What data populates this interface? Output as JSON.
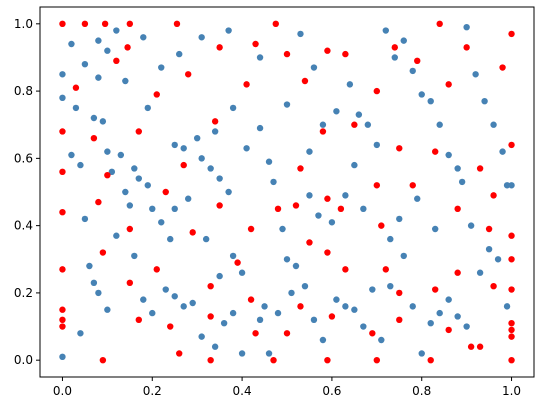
{
  "chart_data": {
    "type": "scatter",
    "xlim": [
      -0.05,
      1.05
    ],
    "ylim": [
      -0.05,
      1.05
    ],
    "xticks": [
      {
        "value": 0,
        "label": "0.0"
      },
      0.2,
      0.4,
      0.6,
      0.8,
      {
        "value": 1,
        "label": "1.0"
      }
    ],
    "yticks": [
      {
        "value": 0,
        "label": "0.0"
      },
      0.2,
      0.4,
      0.6,
      0.8,
      {
        "value": 1,
        "label": "1.0"
      }
    ],
    "series": [
      {
        "color": "#4682b4",
        "x": [
          0.0,
          0.0,
          0.0,
          0.03,
          0.02,
          0.04,
          0.05,
          0.07,
          0.08,
          0.09,
          0.1,
          0.11,
          0.13,
          0.14,
          0.16,
          0.17,
          0.19,
          0.2,
          0.22,
          0.24,
          0.25,
          0.27,
          0.3,
          0.31,
          0.33,
          0.35,
          0.37,
          0.38,
          0.4,
          0.41,
          0.44,
          0.46,
          0.47,
          0.49,
          0.5,
          0.52,
          0.55,
          0.57,
          0.6,
          0.61,
          0.64,
          0.66,
          0.68,
          0.7,
          0.72,
          0.74,
          0.76,
          0.78,
          0.8,
          0.82,
          0.84,
          0.86,
          0.88,
          0.9,
          0.92,
          0.94,
          0.96,
          0.98,
          1.0,
          0.99,
          0.02,
          0.05,
          0.08,
          0.12,
          0.18,
          0.22,
          0.26,
          0.31,
          0.37,
          0.44,
          0.53,
          0.56,
          0.5,
          0.38,
          0.34,
          0.19,
          0.14,
          0.06,
          0.07,
          0.08,
          0.04,
          0.1,
          0.12,
          0.16,
          0.18,
          0.2,
          0.23,
          0.25,
          0.27,
          0.29,
          0.31,
          0.34,
          0.36,
          0.38,
          0.4,
          0.44,
          0.45,
          0.46,
          0.48,
          0.51,
          0.54,
          0.56,
          0.58,
          0.61,
          0.63,
          0.65,
          0.67,
          0.69,
          0.71,
          0.73,
          0.76,
          0.78,
          0.8,
          0.82,
          0.84,
          0.86,
          0.88,
          0.9,
          0.93,
          0.95,
          0.97,
          0.99,
          0.65,
          0.63,
          0.67,
          0.73,
          0.75,
          0.79,
          0.83,
          0.89,
          0.91,
          0.55,
          0.58,
          0.25,
          0.28,
          0.32,
          0.35,
          0.1,
          0.15
        ],
        "values": [
          0.85,
          0.78,
          0.01,
          0.75,
          0.61,
          0.58,
          0.42,
          0.72,
          0.84,
          0.71,
          0.92,
          0.56,
          0.61,
          0.5,
          0.57,
          0.54,
          0.52,
          0.45,
          0.41,
          0.36,
          0.64,
          0.63,
          0.66,
          0.6,
          0.57,
          0.54,
          0.5,
          0.31,
          0.26,
          0.63,
          0.69,
          0.59,
          0.53,
          0.39,
          0.3,
          0.28,
          0.49,
          0.43,
          0.41,
          0.74,
          0.82,
          0.73,
          0.7,
          0.64,
          0.98,
          0.9,
          0.95,
          0.86,
          0.79,
          0.77,
          0.7,
          0.61,
          0.57,
          0.99,
          0.85,
          0.77,
          0.7,
          0.62,
          0.52,
          0.52,
          0.94,
          0.88,
          0.95,
          0.98,
          0.96,
          0.87,
          0.91,
          0.96,
          0.98,
          0.9,
          0.97,
          0.87,
          0.76,
          0.75,
          0.68,
          0.75,
          0.83,
          0.28,
          0.23,
          0.2,
          0.08,
          0.15,
          0.37,
          0.31,
          0.18,
          0.14,
          0.21,
          0.19,
          0.16,
          0.17,
          0.07,
          0.04,
          0.11,
          0.14,
          0.02,
          0.12,
          0.16,
          0.02,
          0.14,
          0.2,
          0.22,
          0.12,
          0.06,
          0.18,
          0.16,
          0.15,
          0.1,
          0.21,
          0.06,
          0.22,
          0.31,
          0.16,
          0.02,
          0.11,
          0.14,
          0.18,
          0.13,
          0.1,
          0.26,
          0.33,
          0.3,
          0.16,
          0.58,
          0.49,
          0.45,
          0.36,
          0.42,
          0.48,
          0.39,
          0.53,
          0.4,
          0.62,
          0.7,
          0.45,
          0.48,
          0.36,
          0.25,
          0.62,
          0.46
        ]
      },
      {
        "color": "#ff0000",
        "x": [
          0,
          0.05,
          0.095,
          0.15,
          0.255,
          0.475,
          0.84,
          1.0,
          0.145,
          0.12,
          0.03,
          0.21,
          0.35,
          0.43,
          0.5,
          0.59,
          0.63,
          0.74,
          0.79,
          0.9,
          0.98,
          0.28,
          0.41,
          0.54,
          0.7,
          0.86,
          0.17,
          0.34,
          0.58,
          0.65,
          0.75,
          0.83,
          0.93,
          1.0,
          0.0,
          0.07,
          0.0,
          0.1,
          0.27,
          0.53,
          0.59,
          0.7,
          0.78,
          0.96,
          0.0,
          0.08,
          0.23,
          0.35,
          0.48,
          0.52,
          0.62,
          0.88,
          0.15,
          0.29,
          0.42,
          0.55,
          0.71,
          0.95,
          1.0,
          0.09,
          0.21,
          0.39,
          0.59,
          0.63,
          0.72,
          0.88,
          1.0,
          0.0,
          0.15,
          0.33,
          0.42,
          0.53,
          0.75,
          0.83,
          0.96,
          1.0,
          0.0,
          0.0,
          0.0,
          0.17,
          0.24,
          0.33,
          0.43,
          0.5,
          0.6,
          0.69,
          0.75,
          0.86,
          0.93,
          1.0,
          1.0,
          1.0,
          0.09,
          0.26,
          0.33,
          0.47,
          0.59,
          0.7,
          0.82,
          0.91,
          1.0
        ],
        "values": [
          1.0,
          1.0,
          1.0,
          1.0,
          1.0,
          1.0,
          1.0,
          0.97,
          0.93,
          0.89,
          0.81,
          0.79,
          0.93,
          0.94,
          0.91,
          0.92,
          0.91,
          0.93,
          0.89,
          0.93,
          0.87,
          0.85,
          0.82,
          0.83,
          0.8,
          0.82,
          0.68,
          0.71,
          0.68,
          0.7,
          0.63,
          0.62,
          0.57,
          0.64,
          0.68,
          0.66,
          0.56,
          0.55,
          0.58,
          0.57,
          0.48,
          0.52,
          0.52,
          0.49,
          0.44,
          0.47,
          0.5,
          0.46,
          0.45,
          0.46,
          0.45,
          0.45,
          0.39,
          0.38,
          0.39,
          0.35,
          0.4,
          0.39,
          0.37,
          0.32,
          0.27,
          0.29,
          0.32,
          0.27,
          0.27,
          0.26,
          0.3,
          0.27,
          0.23,
          0.22,
          0.18,
          0.16,
          0.2,
          0.21,
          0.22,
          0.21,
          0.15,
          0.12,
          0.1,
          0.12,
          0.1,
          0.13,
          0.08,
          0.08,
          0.13,
          0.08,
          0.12,
          0.09,
          0.04,
          0.11,
          0.09,
          0.07,
          0.0,
          0.02,
          0.0,
          0.0,
          0.0,
          0.0,
          0.0,
          0.04,
          0.0
        ]
      }
    ]
  }
}
